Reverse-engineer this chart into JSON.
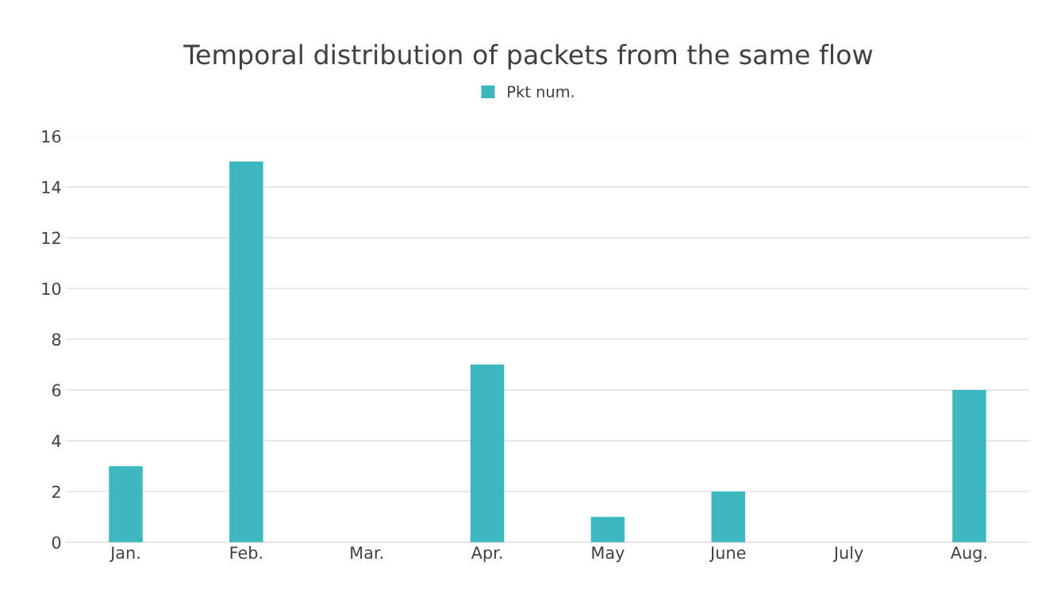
{
  "chart_data": {
    "type": "bar",
    "title": "Temporal distribution of packets from the same flow",
    "categories": [
      "Jan.",
      "Feb.",
      "Mar.",
      "Apr.",
      "May",
      "June",
      "July",
      "Aug."
    ],
    "series": [
      {
        "name": "Pkt num.",
        "color": "#3db8c0",
        "values": [
          3,
          15,
          0,
          7,
          1,
          2,
          0,
          6
        ]
      }
    ],
    "ylim": [
      0,
      16
    ],
    "yticks": [
      0,
      2,
      4,
      6,
      8,
      10,
      12,
      14,
      16
    ],
    "grid": "y",
    "legend": "top"
  }
}
